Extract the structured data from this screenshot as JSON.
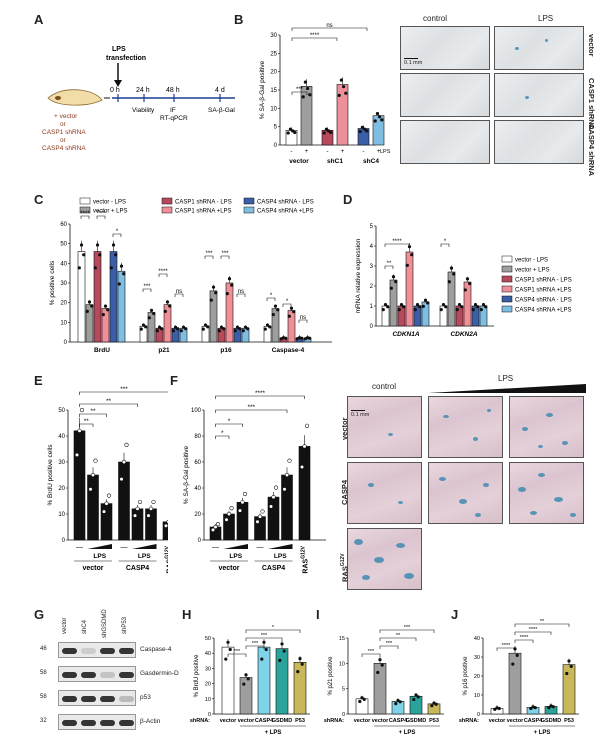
{
  "panels": {
    "A": "A",
    "B": "B",
    "C": "C",
    "D": "D",
    "E": "E",
    "F": "F",
    "G": "G",
    "H": "H",
    "I": "I",
    "J": "J"
  },
  "panelA": {
    "lps": "LPS",
    "transfection": "transfection",
    "cell_label_1": "+ vector",
    "cell_label_2": "or",
    "cell_label_3": "CASP1 shRNA",
    "cell_label_4": "or",
    "cell_label_5": "CASP4 shRNA",
    "t0": "0 h",
    "t24": "24 h",
    "t48": "48 h",
    "t4d": "4 d",
    "viability": "Viability",
    "if": "IF",
    "rtqpcr": "RT-qPCR",
    "sabgal": "SA-β-Gal"
  },
  "panelB": {
    "ylabel": "% SA-β-Gal positive",
    "yticks": [
      "0",
      "5",
      "10",
      "15",
      "20",
      "25",
      "30"
    ],
    "signs": [
      "-",
      "+",
      "-",
      "+",
      "-",
      "+"
    ],
    "lps": "LPS",
    "groups": [
      "vector",
      "shC1",
      "shC4"
    ],
    "sig": [
      "***",
      "****",
      "ns"
    ],
    "colors": [
      "#ffffff",
      "#9e9e9e",
      "#b64a5c",
      "#ef8f97",
      "#3b5fa6",
      "#7fbde3"
    ],
    "values": [
      4,
      16,
      4,
      16.5,
      4.5,
      8
    ],
    "img_control": "control",
    "img_lps": "LPS",
    "row_vector": "vector",
    "row_casp1": "CASP1 shRNA",
    "row_casp4": "CASP4 shRNA",
    "scale": "0.1 mm"
  },
  "panelC": {
    "ylabel": "% positive cells",
    "yticks": [
      "0",
      "10",
      "20",
      "30",
      "40",
      "50",
      "60"
    ],
    "legend": [
      "vector - LPS",
      "vector + LPS",
      "CASP1 shRNA - LPS",
      "CASP1 shRNA +LPS",
      "CASP4 shRNA - LPS",
      "CASP4 shRNA +LPS"
    ],
    "categories": [
      "BrdU",
      "p21",
      "p16",
      "Caspase-4"
    ],
    "series": [
      {
        "values": [
          46,
          8,
          8,
          8
        ]
      },
      {
        "values": [
          19,
          15,
          26,
          17
        ]
      },
      {
        "values": [
          46,
          7,
          7,
          2
        ]
      },
      {
        "values": [
          17,
          19,
          30,
          16
        ]
      },
      {
        "values": [
          46,
          7,
          7,
          2
        ]
      },
      {
        "values": [
          36,
          7,
          7,
          2
        ]
      }
    ],
    "sig_brdu": [
      "****",
      "****",
      "*"
    ],
    "sig_p21": [
      "***",
      "****",
      "ns"
    ],
    "sig_p16": [
      "***",
      "***",
      "ns"
    ],
    "sig_casp": [
      "*",
      "*",
      "ns"
    ]
  },
  "panelD": {
    "ylabel": "mRNA relative expression",
    "yticks": [
      "0",
      "1",
      "2",
      "3",
      "4",
      "5"
    ],
    "categories": [
      "CDKN1A",
      "CDKN2A"
    ],
    "series": [
      {
        "values": [
          1,
          1
        ]
      },
      {
        "values": [
          2.3,
          2.7
        ]
      },
      {
        "values": [
          1,
          1
        ]
      },
      {
        "values": [
          3.7,
          2.2
        ]
      },
      {
        "values": [
          1,
          1
        ]
      },
      {
        "values": [
          1.2,
          1
        ]
      }
    ],
    "sig": [
      "**",
      "****",
      "*"
    ],
    "legend": [
      "vector - LPS",
      "vector + LPS",
      "CASP1 shRNA - LPS",
      "CASP1 shRNA +LPS",
      "CASP4 shRNA - LPS",
      "CASP4 shRNA +LPS"
    ]
  },
  "panelE": {
    "ylabel": "% BrdU positive cells",
    "yticks": [
      "0",
      "10",
      "20",
      "30",
      "40",
      "50"
    ],
    "values": [
      42,
      25,
      14,
      30,
      12,
      12,
      7
    ],
    "lps1": "LPS",
    "lps2": "LPS",
    "dash1": "—",
    "dash2": "—",
    "vector": "vector",
    "casp4": "CASP4",
    "ras": "RAS",
    "ras_sup": "G12V",
    "sig": [
      "**",
      "**",
      "**",
      "***"
    ]
  },
  "panelF": {
    "ylabel": "% SA-β-Gal positive",
    "yticks": [
      "0",
      "20",
      "40",
      "60",
      "80",
      "100"
    ],
    "values": [
      10,
      20,
      29,
      18,
      33,
      50,
      72
    ],
    "lps1": "LPS",
    "lps2": "LPS",
    "dash1": "—",
    "dash2": "—",
    "vector": "vector",
    "casp4": "CASP4",
    "ras": "RAS",
    "ras_sup": "G12V",
    "sig": [
      "*",
      "*",
      "***",
      "****"
    ],
    "img_control": "control",
    "img_lps": "LPS",
    "row_vector": "vector",
    "row_casp4": "CASP4",
    "row_ras": "RAS",
    "row_ras_sup": "G12V",
    "scale": "0.1 mm"
  },
  "panelG": {
    "lanes": [
      "vector",
      "shC4",
      "shGSDMD",
      "shP53"
    ],
    "markers": [
      "46",
      "58",
      "58",
      "32"
    ],
    "proteins": [
      "Caspase-4",
      "Gasdermin-D",
      "p53",
      "β-Actin"
    ]
  },
  "panelH": {
    "ylabel": "% BrdU positive",
    "yticks": [
      "0",
      "10",
      "20",
      "30",
      "40",
      "50"
    ],
    "shrna": "shRNA:",
    "categories": [
      "vector",
      "vector",
      "CASP4",
      "GSDMD",
      "P53"
    ],
    "values": [
      44,
      24,
      44,
      43,
      34
    ],
    "colors": [
      "#ffffff",
      "#9e9e9e",
      "#7fd3e8",
      "#2aa39a",
      "#c8b85a"
    ],
    "lps": "+ LPS",
    "sig": [
      "***",
      "***",
      "***",
      "*"
    ]
  },
  "panelI": {
    "ylabel": "% p21 positive",
    "yticks": [
      "0",
      "5",
      "10",
      "15"
    ],
    "shrna": "shRNA:",
    "categories": [
      "vector",
      "vector",
      "CASP4",
      "GSDMD",
      "P53"
    ],
    "values": [
      3,
      10,
      2.5,
      3.5,
      2
    ],
    "colors": [
      "#ffffff",
      "#9e9e9e",
      "#7fd3e8",
      "#2aa39a",
      "#c8b85a"
    ],
    "lps": "+ LPS",
    "sig": [
      "***",
      "***",
      "**",
      "***"
    ]
  },
  "panelJ": {
    "ylabel": "% p16 positive",
    "yticks": [
      "0",
      "10",
      "20",
      "30",
      "40"
    ],
    "shrna": "shRNA:",
    "categories": [
      "vector",
      "vector",
      "CASP4",
      "GSDMD",
      "P53"
    ],
    "values": [
      3,
      32,
      3.5,
      4,
      26
    ],
    "colors": [
      "#ffffff",
      "#9e9e9e",
      "#7fd3e8",
      "#2aa39a",
      "#c8b85a"
    ],
    "lps": "+ LPS",
    "sig": [
      "****",
      "****",
      "****",
      "**"
    ]
  }
}
